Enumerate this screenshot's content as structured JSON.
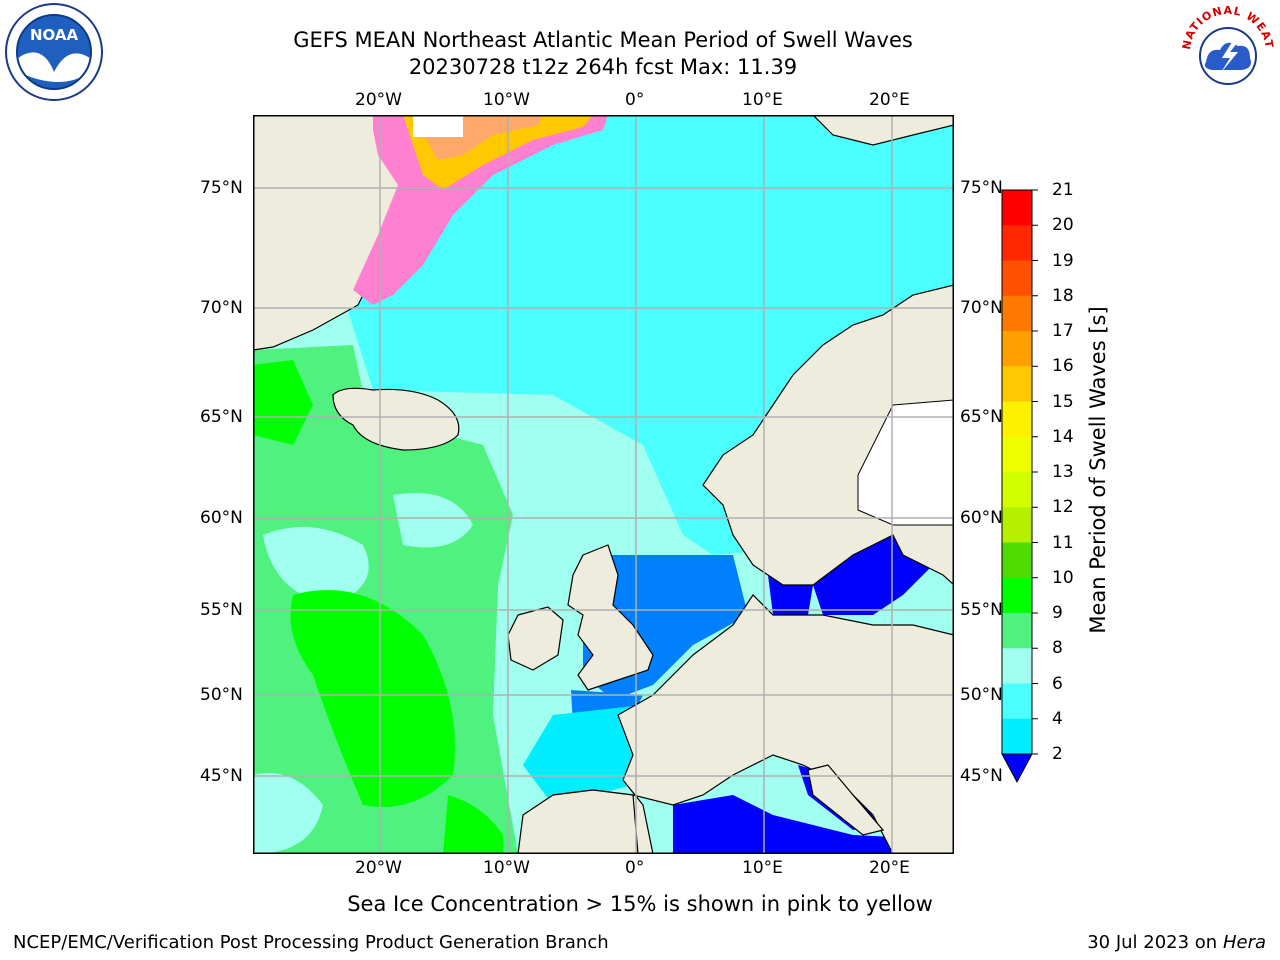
{
  "header": {
    "title_line1": "GEFS MEAN Northeast Atlantic Mean Period of Swell Waves",
    "title_line2": "20230728 t12z 264h fcst   Max: 11.39"
  },
  "logos": {
    "left": "NOAA",
    "right": "NATIONAL WEATHER SERVICE"
  },
  "map": {
    "lon_labels": [
      "20°W",
      "10°W",
      "0°",
      "10°E",
      "20°E"
    ],
    "lat_labels": [
      "75°N",
      "70°N",
      "65°N",
      "60°N",
      "55°N",
      "50°N",
      "45°N"
    ],
    "colors": {
      "land": "#eeecdc",
      "ice_missing": "#ffffff",
      "grid": "#b0b0b0"
    }
  },
  "colorbar": {
    "label": "Mean Period of Swell Waves [s]",
    "ticks": [
      "21",
      "20",
      "19",
      "18",
      "17",
      "16",
      "15",
      "14",
      "13",
      "12",
      "11",
      "10",
      "9",
      "8",
      "6",
      "4",
      "2"
    ],
    "colors": [
      "#ff0000",
      "#ff2800",
      "#ff5000",
      "#ff7800",
      "#ffa000",
      "#ffc800",
      "#fff000",
      "#f0ff00",
      "#d2ff00",
      "#b4f000",
      "#50dc00",
      "#00ff00",
      "#4ff27f",
      "#a0ffee",
      "#4bfffe",
      "#00eefe",
      "#0080ff",
      "#0000ff"
    ]
  },
  "caption": "Sea Ice Concentration > 15% is shown in pink to yellow",
  "footer": {
    "left": "NCEP/EMC/Verification Post Processing Product Generation Branch",
    "date": "30 Jul 2023 on ",
    "machine": "Hera"
  }
}
